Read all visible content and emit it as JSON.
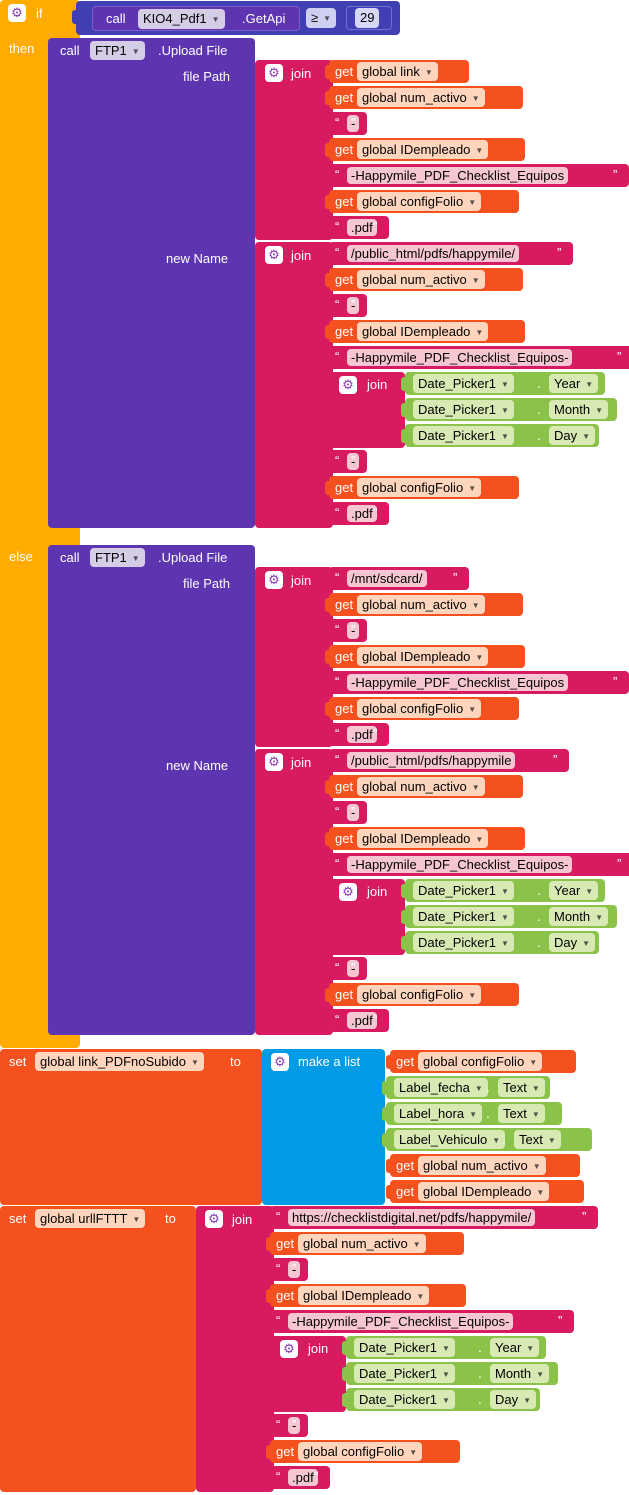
{
  "colors": {
    "control": "#ffab00",
    "component": "#5e35b1",
    "text": "#d81b60",
    "variable": "#f4511e",
    "list": "#039be5",
    "property": "#8bc34a",
    "getapi": "#4040b4"
  },
  "icons": {
    "gear": "gear-icon",
    "dropdown": "chevron-down-icon"
  },
  "control": {
    "if_label": "if",
    "then_label": "then",
    "else_label": "else"
  },
  "condition": {
    "call_label": "call",
    "component": "KIO4_Pdf1",
    "method": ".GetApi",
    "operator": "≥",
    "value": "29"
  },
  "kw": {
    "call": "call",
    "get": "get",
    "join": "join",
    "set": "set",
    "to": "to",
    "make_a_list": "make a list",
    "dot": "."
  },
  "then_call": {
    "component": "FTP1",
    "method": ".Upload File",
    "file_path_label": "file Path",
    "new_name_label": "new Name",
    "file_path": [
      {
        "type": "get",
        "var": "global link"
      },
      {
        "type": "get",
        "var": "global num_activo"
      },
      {
        "type": "text",
        "value": "-"
      },
      {
        "type": "get",
        "var": "global IDempleado"
      },
      {
        "type": "text",
        "value": "-Happymile_PDF_Checklist_Equipos"
      },
      {
        "type": "get",
        "var": "global configFolio"
      },
      {
        "type": "text",
        "value": ".pdf"
      }
    ],
    "new_name": [
      {
        "type": "text",
        "value": "/public_html/pdfs/happymile/"
      },
      {
        "type": "get",
        "var": "global num_activo"
      },
      {
        "type": "text",
        "value": "-"
      },
      {
        "type": "get",
        "var": "global IDempleado"
      },
      {
        "type": "text",
        "value": "-Happymile_PDF_Checklist_Equipos-"
      },
      {
        "type": "join",
        "items": [
          {
            "component": "Date_Picker1",
            "prop": "Year"
          },
          {
            "component": "Date_Picker1",
            "prop": "Month"
          },
          {
            "component": "Date_Picker1",
            "prop": "Day"
          }
        ]
      },
      {
        "type": "text",
        "value": "-"
      },
      {
        "type": "get",
        "var": "global configFolio"
      },
      {
        "type": "text",
        "value": ".pdf"
      }
    ]
  },
  "else_call": {
    "component": "FTP1",
    "method": ".Upload File",
    "file_path_label": "file Path",
    "new_name_label": "new Name",
    "file_path": [
      {
        "type": "text",
        "value": "/mnt/sdcard/"
      },
      {
        "type": "get",
        "var": "global num_activo"
      },
      {
        "type": "text",
        "value": "-"
      },
      {
        "type": "get",
        "var": "global IDempleado"
      },
      {
        "type": "text",
        "value": "-Happymile_PDF_Checklist_Equipos"
      },
      {
        "type": "get",
        "var": "global configFolio"
      },
      {
        "type": "text",
        "value": ".pdf"
      }
    ],
    "new_name": [
      {
        "type": "text",
        "value": "/public_html/pdfs/happymile"
      },
      {
        "type": "get",
        "var": "global num_activo"
      },
      {
        "type": "text",
        "value": "-"
      },
      {
        "type": "get",
        "var": "global IDempleado"
      },
      {
        "type": "text",
        "value": "-Happymile_PDF_Checklist_Equipos-"
      },
      {
        "type": "join",
        "items": [
          {
            "component": "Date_Picker1",
            "prop": "Year"
          },
          {
            "component": "Date_Picker1",
            "prop": "Month"
          },
          {
            "component": "Date_Picker1",
            "prop": "Day"
          }
        ]
      },
      {
        "type": "text",
        "value": "-"
      },
      {
        "type": "get",
        "var": "global configFolio"
      },
      {
        "type": "text",
        "value": ".pdf"
      }
    ]
  },
  "set1": {
    "var": "global link_PDFnoSubido",
    "items": [
      {
        "type": "get",
        "var": "global configFolio"
      },
      {
        "type": "prop",
        "component": "Label_fecha",
        "prop": "Text"
      },
      {
        "type": "prop",
        "component": "Label_hora",
        "prop": "Text"
      },
      {
        "type": "prop",
        "component": "Label_Vehiculo",
        "prop": "Text"
      },
      {
        "type": "get",
        "var": "global num_activo"
      },
      {
        "type": "get",
        "var": "global IDempleado"
      }
    ]
  },
  "set2": {
    "var": "global urllFTTT",
    "items": [
      {
        "type": "text",
        "value": "https://checklistdigital.net/pdfs/happymile/"
      },
      {
        "type": "get",
        "var": "global num_activo"
      },
      {
        "type": "text",
        "value": "-"
      },
      {
        "type": "get",
        "var": "global IDempleado"
      },
      {
        "type": "text",
        "value": "-Happymile_PDF_Checklist_Equipos-"
      },
      {
        "type": "join",
        "items": [
          {
            "component": "Date_Picker1",
            "prop": "Year"
          },
          {
            "component": "Date_Picker1",
            "prop": "Month"
          },
          {
            "component": "Date_Picker1",
            "prop": "Day"
          }
        ]
      },
      {
        "type": "text",
        "value": "-"
      },
      {
        "type": "get",
        "var": "global configFolio"
      },
      {
        "type": "text",
        "value": ".pdf"
      }
    ]
  }
}
